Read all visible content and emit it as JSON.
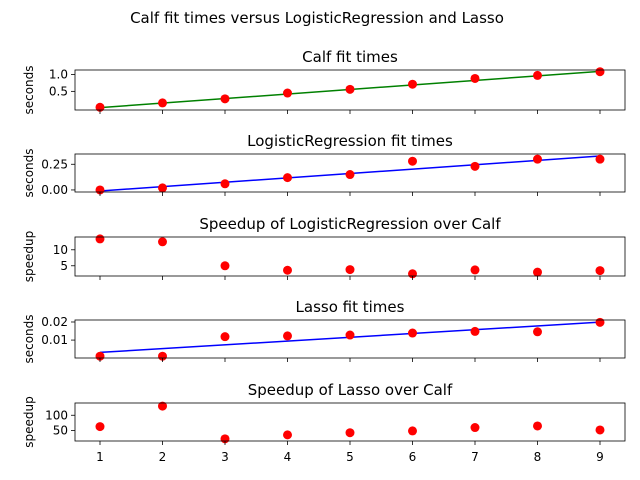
{
  "suptitle": "Calf fit times versus LogisticRegression and Lasso",
  "chart_data": [
    {
      "type": "scatter",
      "title": "Calf fit times",
      "xlabel": "",
      "ylabel": "seconds",
      "xlim": [
        0.6,
        9.4
      ],
      "ylim": [
        -0.05,
        1.13
      ],
      "yticks": [
        0.5,
        1.0
      ],
      "ytick_labels": [
        "0.5",
        "1.0"
      ],
      "x": [
        1,
        2,
        3,
        4,
        5,
        6,
        7,
        8,
        9
      ],
      "points": [
        0.03,
        0.16,
        0.28,
        0.45,
        0.56,
        0.71,
        0.88,
        0.97,
        1.08
      ],
      "fit_line": [
        [
          1,
          0.02
        ],
        [
          9,
          1.09
        ]
      ],
      "point_color": "#ff0000",
      "line_color": "#008000"
    },
    {
      "type": "scatter",
      "title": "LogisticRegression fit times",
      "xlabel": "",
      "ylabel": "seconds",
      "xlim": [
        0.6,
        9.4
      ],
      "ylim": [
        -0.02,
        0.35
      ],
      "yticks": [
        0.0,
        0.25
      ],
      "ytick_labels": [
        "0.00",
        "0.25"
      ],
      "x": [
        1,
        2,
        3,
        4,
        5,
        6,
        7,
        8,
        9
      ],
      "points": [
        0.0,
        0.02,
        0.06,
        0.12,
        0.15,
        0.28,
        0.23,
        0.3,
        0.3
      ],
      "fit_line": [
        [
          1,
          -0.01
        ],
        [
          9,
          0.33
        ]
      ],
      "point_color": "#ff0000",
      "line_color": "#0000ff"
    },
    {
      "type": "scatter",
      "title": "Speedup of LogisticRegression over Calf",
      "xlabel": "",
      "ylabel": "speedup",
      "xlim": [
        0.6,
        9.4
      ],
      "ylim": [
        1.8,
        14.0
      ],
      "yticks": [
        5,
        10
      ],
      "ytick_labels": [
        "5",
        "10"
      ],
      "x": [
        1,
        2,
        3,
        4,
        5,
        6,
        7,
        8,
        9
      ],
      "points": [
        13.4,
        12.5,
        5.0,
        3.6,
        3.8,
        2.5,
        3.7,
        3.0,
        3.5
      ],
      "point_color": "#ff0000"
    },
    {
      "type": "scatter",
      "title": "Lasso fit times",
      "xlabel": "",
      "ylabel": "seconds",
      "xlim": [
        0.6,
        9.4
      ],
      "ylim": [
        0.0001,
        0.0211
      ],
      "yticks": [
        0.01,
        0.02
      ],
      "ytick_labels": [
        "0.01",
        "0.02"
      ],
      "x": [
        1,
        2,
        3,
        4,
        5,
        6,
        7,
        8,
        9
      ],
      "points": [
        0.0011,
        0.0011,
        0.0119,
        0.0123,
        0.0128,
        0.0139,
        0.0148,
        0.0146,
        0.0198
      ],
      "fit_line": [
        [
          1,
          0.0032
        ],
        [
          9,
          0.0199
        ]
      ],
      "point_color": "#ff0000",
      "line_color": "#0000ff"
    },
    {
      "type": "scatter",
      "title": "Speedup of Lasso over Calf",
      "xlabel": "",
      "ylabel": "speedup",
      "xlim": [
        0.6,
        9.4
      ],
      "ylim": [
        16,
        140
      ],
      "yticks": [
        50,
        100
      ],
      "ytick_labels": [
        "50",
        "100"
      ],
      "xticks": [
        1,
        2,
        3,
        4,
        5,
        6,
        7,
        8,
        9
      ],
      "xtick_labels": [
        "1",
        "2",
        "3",
        "4",
        "5",
        "6",
        "7",
        "8",
        "9"
      ],
      "x": [
        1,
        2,
        3,
        4,
        5,
        6,
        7,
        8,
        9
      ],
      "points": [
        63,
        130,
        23,
        36,
        43,
        49,
        60,
        65,
        52
      ],
      "point_color": "#ff0000"
    }
  ]
}
